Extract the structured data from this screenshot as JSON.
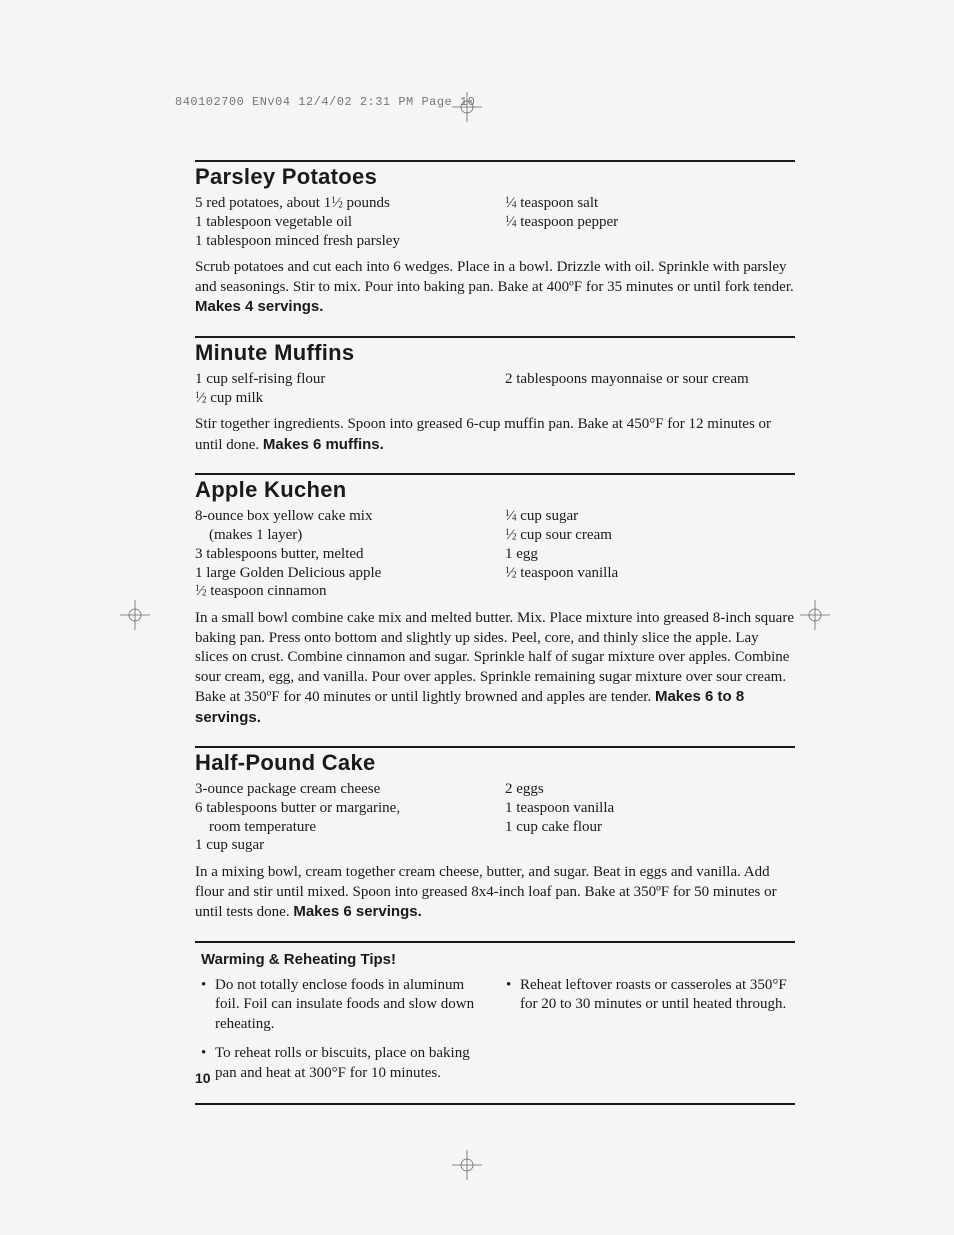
{
  "slug": "840102700 ENv04  12/4/02  2:31 PM  Page 10",
  "page_number": "10",
  "recipes": [
    {
      "title": "Parsley Potatoes",
      "ingredients_left": [
        "5 red potatoes, about 1½ pounds",
        "1 tablespoon vegetable oil",
        "1 tablespoon minced fresh parsley"
      ],
      "ingredients_right": [
        "¼ teaspoon salt",
        "¼ teaspoon pepper"
      ],
      "instructions": "Scrub potatoes and cut each into 6 wedges. Place in a bowl. Drizzle with oil. Sprinkle with parsley and seasonings. Stir to mix. Pour into baking pan. Bake at 400ºF for 35 minutes or until fork tender.",
      "yield": "Makes 4 servings."
    },
    {
      "title": "Minute Muffins",
      "ingredients_left": [
        "1 cup self-rising flour",
        "½ cup milk"
      ],
      "ingredients_right": [
        "2 tablespoons mayonnaise or sour cream"
      ],
      "instructions": "Stir together ingredients. Spoon into greased 6-cup muffin pan. Bake at 450°F for 12 minutes or until done.",
      "yield": "Makes 6 muffins."
    },
    {
      "title": "Apple Kuchen",
      "ingredients_left": [
        "8-ounce box yellow cake mix",
        "   (makes 1 layer)",
        "3 tablespoons butter, melted",
        "1 large Golden Delicious apple",
        "½ teaspoon cinnamon"
      ],
      "ingredients_right": [
        "¼ cup sugar",
        "½ cup sour cream",
        "1 egg",
        "½ teaspoon vanilla"
      ],
      "instructions": "In a small bowl combine cake mix and melted butter. Mix. Place mixture into greased 8-inch square baking pan. Press onto bottom and slightly up sides. Peel, core, and thinly slice the apple. Lay slices on crust. Combine cinnamon and sugar. Sprinkle half of sugar mixture over apples. Combine sour cream, egg, and vanilla. Pour over apples. Sprinkle remaining sugar mixture over sour cream. Bake at 350ºF for 40 minutes or until lightly browned and apples are tender.",
      "yield": "Makes 6 to 8 servings."
    },
    {
      "title": "Half-Pound Cake",
      "ingredients_left": [
        "3-ounce package cream cheese",
        "6 tablespoons butter or margarine,",
        "   room temperature",
        "1 cup sugar"
      ],
      "ingredients_right": [
        "2 eggs",
        "1 teaspoon vanilla",
        "1 cup cake flour"
      ],
      "instructions": "In a mixing bowl, cream together cream cheese, butter, and sugar. Beat in eggs and vanilla. Add flour and stir until mixed. Spoon into greased 8x4-inch loaf pan. Bake at 350ºF for 50 minutes or until tests done.",
      "yield": "Makes 6 servings."
    }
  ],
  "tips": {
    "title": "Warming & Reheating Tips!",
    "left": [
      "Do not totally enclose foods in aluminum foil. Foil can insulate foods and slow down reheating.",
      "To reheat rolls or biscuits, place on baking pan and heat at 300°F for 10 minutes."
    ],
    "right": [
      "Reheat leftover roasts or casseroles at 350°F for 20 to 30 minutes or until heated through."
    ]
  },
  "style": {
    "title_font": "Arial Black",
    "body_font": "Century Schoolbook",
    "title_fontsize_pt": 17,
    "body_fontsize_pt": 11,
    "rule_color": "#1a1a1a",
    "text_color": "#1a1a1a",
    "background_color": "#f5f5f3"
  }
}
